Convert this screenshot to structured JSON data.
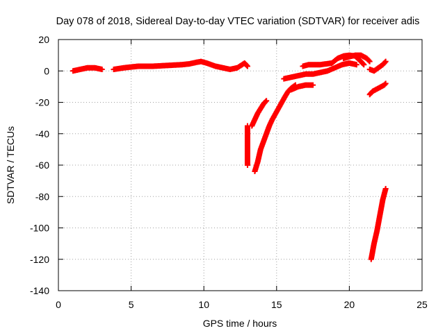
{
  "chart_data": {
    "type": "scatter",
    "title": "Day 078 of 2018, Sidereal Day-to-day VTEC variation (SDTVAR) for receiver adis",
    "xlabel": "GPS time / hours",
    "ylabel": "SDTVAR / TECUs",
    "xlim": [
      0,
      25
    ],
    "ylim": [
      -140,
      20
    ],
    "xticks": [
      0,
      5,
      10,
      15,
      20,
      25
    ],
    "yticks": [
      20,
      0,
      -20,
      -40,
      -60,
      -80,
      -100,
      -120,
      -140
    ],
    "xtick_labels": [
      "0",
      "5",
      "10",
      "15",
      "20",
      "25"
    ],
    "ytick_labels": [
      "20",
      "0",
      "-20",
      "-40",
      "-60",
      "-80",
      "-100",
      "-120",
      "-140"
    ],
    "grid": true,
    "legend": "none",
    "marker": "plus",
    "color": "#ff0000",
    "series": [
      {
        "x": [
          1.0,
          1.5,
          2.0,
          2.5,
          3.0
        ],
        "y": [
          0,
          1,
          2,
          2,
          1
        ]
      },
      {
        "x": [
          3.8,
          4.5,
          5.5,
          6.5,
          7.5,
          8.5,
          9.0,
          9.5,
          9.8,
          10.2,
          10.8,
          11.3,
          11.8,
          12.3,
          12.8,
          13.0
        ],
        "y": [
          1,
          2,
          3,
          3,
          3.5,
          4,
          4.5,
          5.5,
          6,
          5,
          3,
          2,
          1,
          2,
          5,
          3
        ]
      },
      {
        "x": [
          13.0,
          13.0,
          13.0
        ],
        "y": [
          -35,
          -47,
          -60
        ]
      },
      {
        "x": [
          13.3,
          13.5,
          13.7,
          13.9,
          14.1,
          14.3
        ],
        "y": [
          -35,
          -31,
          -27,
          -24,
          -21,
          -19
        ]
      },
      {
        "x": [
          13.5,
          13.7,
          13.9,
          14.1,
          14.3,
          14.5,
          14.7,
          15.0,
          15.3,
          15.6,
          15.8,
          16.0,
          16.3
        ],
        "y": [
          -64,
          -58,
          -50,
          -45,
          -40,
          -35,
          -31,
          -26,
          -21,
          -16,
          -13,
          -11,
          -9
        ]
      },
      {
        "x": [
          16.0,
          16.5,
          17.0,
          17.5
        ],
        "y": [
          -12,
          -10,
          -9,
          -9
        ]
      },
      {
        "x": [
          15.5,
          16.0,
          16.5,
          17.0,
          17.5,
          18.0,
          18.5,
          19.0,
          19.5,
          20.0,
          20.5
        ],
        "y": [
          -5,
          -4,
          -3,
          -2,
          -2,
          -1,
          0,
          2,
          4,
          5,
          4
        ]
      },
      {
        "x": [
          16.8,
          17.2,
          17.6,
          18.0,
          18.4,
          18.8,
          19.2,
          19.6,
          20.0,
          20.4,
          20.8,
          21.0
        ],
        "y": [
          3,
          4,
          4,
          4,
          4.5,
          5,
          8,
          9.5,
          10,
          9.5,
          6,
          4
        ]
      },
      {
        "x": [
          19.6,
          20.0,
          20.4,
          20.8,
          21.2,
          21.4
        ],
        "y": [
          8,
          9,
          10,
          10,
          8,
          6
        ]
      },
      {
        "x": [
          21.4,
          21.7,
          22.0,
          22.3,
          22.5
        ],
        "y": [
          1,
          0,
          2,
          4,
          6
        ]
      },
      {
        "x": [
          21.4,
          21.6,
          21.8,
          22.0,
          22.2,
          22.4,
          22.5
        ],
        "y": [
          -15,
          -13,
          -12,
          -11,
          -10,
          -9,
          -8
        ]
      },
      {
        "x": [
          21.5,
          21.7,
          21.9,
          22.1,
          22.3,
          22.5
        ],
        "y": [
          -120,
          -110,
          -102,
          -92,
          -82,
          -75
        ]
      }
    ]
  }
}
